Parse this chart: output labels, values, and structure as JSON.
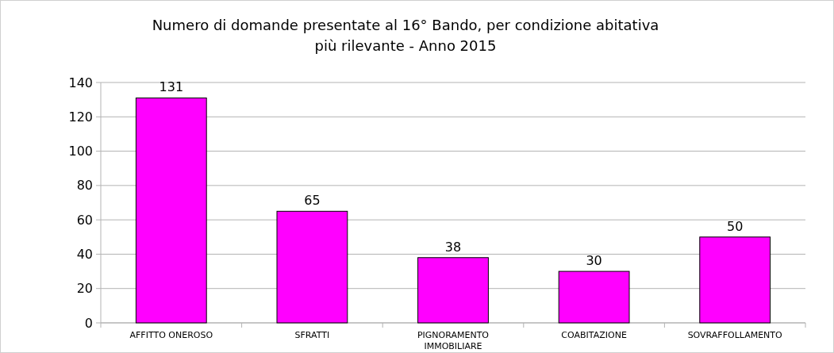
{
  "chart_data": {
    "type": "bar",
    "title": "Numero di domande presentate al 16° Bando, per condizione abitativa\npiù rilevante - Anno 2015",
    "categories": [
      "AFFITTO ONEROSO",
      "SFRATTI",
      "PIGNORAMENTO IMMOBILIARE",
      "COABITAZIONE",
      "SOVRAFFOLLAMENTO"
    ],
    "values": [
      131,
      65,
      38,
      30,
      50
    ],
    "color": "#ff00ff",
    "ylim": [
      0,
      140
    ],
    "yticks": [
      0,
      20,
      40,
      60,
      80,
      100,
      120,
      140
    ],
    "grid": "y",
    "data_labels": true
  }
}
